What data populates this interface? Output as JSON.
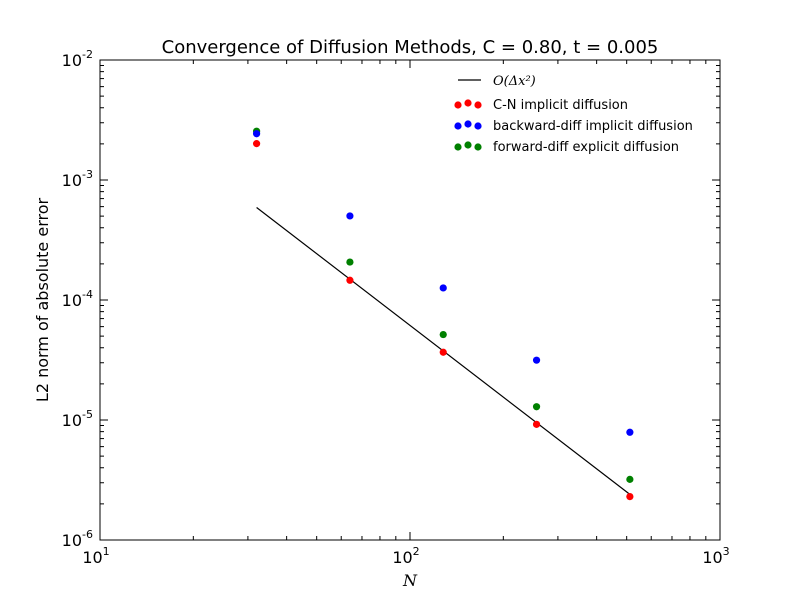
{
  "chart_data": {
    "type": "scatter",
    "title": "Convergence of Diffusion Methods, C = 0.80, t = 0.005",
    "xlabel": "N",
    "ylabel": "L2 norm of absolute error",
    "xscale": "log",
    "yscale": "log",
    "xlim": [
      10,
      1000
    ],
    "ylim": [
      1e-06,
      0.01
    ],
    "x_ticks": [
      {
        "base": "10",
        "exp": "1"
      },
      {
        "base": "10",
        "exp": "2"
      },
      {
        "base": "10",
        "exp": "3"
      }
    ],
    "y_ticks": [
      {
        "base": "10",
        "exp": "-6"
      },
      {
        "base": "10",
        "exp": "-5"
      },
      {
        "base": "10",
        "exp": "-4"
      },
      {
        "base": "10",
        "exp": "-3"
      },
      {
        "base": "10",
        "exp": "-2"
      }
    ],
    "grid": false,
    "legend_position": "top-right",
    "reference_line": {
      "name": "O(Δx²)",
      "color": "#000000",
      "x": [
        32,
        512
      ],
      "y": [
        0.00059,
        2.4e-06
      ]
    },
    "x": [
      32,
      64,
      128,
      256,
      512
    ],
    "series": [
      {
        "name": "C-N implicit diffusion",
        "color": "#ff0000",
        "values": [
          0.00201,
          0.000146,
          3.67e-05,
          9.2e-06,
          2.3e-06
        ]
      },
      {
        "name": "backward-diff implicit diffusion",
        "color": "#0000ff",
        "values": [
          0.00243,
          0.000502,
          0.000126,
          3.15e-05,
          7.9e-06
        ]
      },
      {
        "name": "forward-diff explicit diffusion",
        "color": "#008000",
        "values": [
          0.00255,
          0.000207,
          5.15e-05,
          1.29e-05,
          3.2e-06
        ]
      }
    ]
  }
}
